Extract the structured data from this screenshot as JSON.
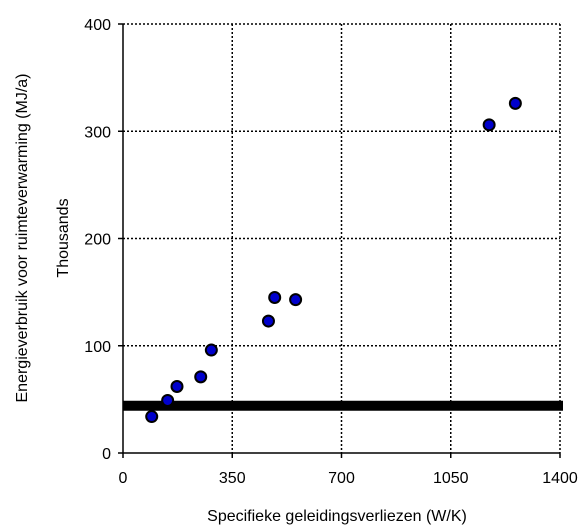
{
  "chart_data": {
    "type": "scatter",
    "title": "",
    "xlabel": "Specifieke geleidingsverliezen (W/K)",
    "ylabel": "Energieverbruik voor ruimteverwarming (MJ/a)",
    "ylabel_secondary": "Thousands",
    "xlim": [
      0,
      1400
    ],
    "ylim": [
      0,
      400
    ],
    "x_ticks": [
      "0",
      "350",
      "700",
      "1050",
      "1400"
    ],
    "y_ticks": [
      "0",
      "100",
      "200",
      "300",
      "400"
    ],
    "grid": "dotted",
    "marker_color": "#0000cc",
    "marker_edge_color": "#000000",
    "reference_line": {
      "y": 44,
      "color": "#000000"
    },
    "points": [
      {
        "x": 92,
        "y": 34
      },
      {
        "x": 143,
        "y": 49
      },
      {
        "x": 173,
        "y": 62
      },
      {
        "x": 249,
        "y": 71
      },
      {
        "x": 283,
        "y": 96
      },
      {
        "x": 466,
        "y": 123
      },
      {
        "x": 486,
        "y": 145
      },
      {
        "x": 553,
        "y": 143
      },
      {
        "x": 1173,
        "y": 306
      },
      {
        "x": 1257,
        "y": 326
      }
    ]
  }
}
